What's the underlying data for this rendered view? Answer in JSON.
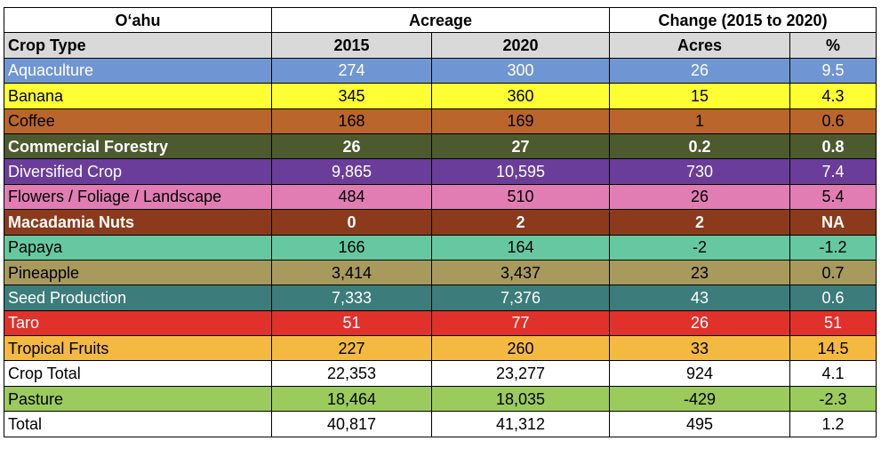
{
  "header": {
    "region": "O‘ahu",
    "acreage": "Acreage",
    "change": "Change (2015 to 2020)",
    "col_crop_type": "Crop Type",
    "col_2015": "2015",
    "col_2020": "2020",
    "col_acres": "Acres",
    "col_pct": "%"
  },
  "rows": [
    {
      "crop": "Aquaculture",
      "y2015": "274",
      "y2020": "300",
      "acres": "26",
      "pct": "9.5",
      "bg": "#6f96d3",
      "text": "#ffffff"
    },
    {
      "crop": "Banana",
      "y2015": "345",
      "y2020": "360",
      "acres": "15",
      "pct": "4.3",
      "bg": "#ffff33",
      "text": "#000000"
    },
    {
      "crop": "Coffee",
      "y2015": "168",
      "y2020": "169",
      "acres": "1",
      "pct": "0.6",
      "bg": "#b9652c",
      "text": "#000000"
    },
    {
      "crop": "Commercial Forestry",
      "y2015": "26",
      "y2020": "27",
      "acres": "0.2",
      "pct": "0.8",
      "bg": "#4c5a2e",
      "text": "#ffffff",
      "bold": true
    },
    {
      "crop": "Diversified Crop",
      "y2015": "9,865",
      "y2020": "10,595",
      "acres": "730",
      "pct": "7.4",
      "bg": "#6a3d9a",
      "text": "#ffffff"
    },
    {
      "crop": "Flowers / Foliage / Landscape",
      "y2015": "484",
      "y2020": "510",
      "acres": "26",
      "pct": "5.4",
      "bg": "#e27db4",
      "text": "#000000"
    },
    {
      "crop": "Macadamia Nuts",
      "y2015": "0",
      "y2020": "2",
      "acres": "2",
      "pct": "NA",
      "bg": "#8b3a1c",
      "text": "#ffffff",
      "bold": true
    },
    {
      "crop": "Papaya",
      "y2015": "166",
      "y2020": "164",
      "acres": "-2",
      "pct": "-1.2",
      "bg": "#66c8a0",
      "text": "#000000"
    },
    {
      "crop": "Pineapple",
      "y2015": "3,414",
      "y2020": "3,437",
      "acres": "23",
      "pct": "0.7",
      "bg": "#a89a5d",
      "text": "#000000"
    },
    {
      "crop": "Seed Production",
      "y2015": "7,333",
      "y2020": "7,376",
      "acres": "43",
      "pct": "0.6",
      "bg": "#3c7c7b",
      "text": "#ffffff"
    },
    {
      "crop": "Taro",
      "y2015": "51",
      "y2020": "77",
      "acres": "26",
      "pct": "51",
      "bg": "#e0312b",
      "text": "#ffffff"
    },
    {
      "crop": "Tropical Fruits",
      "y2015": "227",
      "y2020": "260",
      "acres": "33",
      "pct": "14.5",
      "bg": "#f4b941",
      "text": "#000000"
    },
    {
      "crop": "Crop Total",
      "y2015": "22,353",
      "y2020": "23,277",
      "acres": "924",
      "pct": "4.1",
      "bg": "#ffffff",
      "text": "#000000"
    },
    {
      "crop": "Pasture",
      "y2015": "18,464",
      "y2020": "18,035",
      "acres": "-429",
      "pct": "-2.3",
      "bg": "#9bcb5c",
      "text": "#000000"
    },
    {
      "crop": "Total",
      "y2015": "40,817",
      "y2020": "41,312",
      "acres": "495",
      "pct": "1.2",
      "bg": "#ffffff",
      "text": "#000000"
    }
  ]
}
